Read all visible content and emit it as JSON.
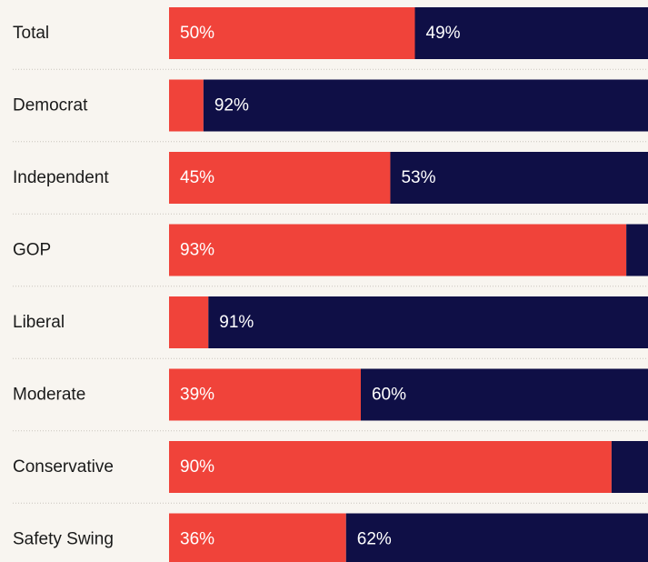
{
  "chart_data": {
    "type": "bar",
    "orientation": "horizontal",
    "stacked": true,
    "categories": [
      "Total",
      "Democrat",
      "Independent",
      "GOP",
      "Liberal",
      "Moderate",
      "Conservative",
      "Safety Swing"
    ],
    "series": [
      {
        "color": "#f0433a",
        "values": [
          50,
          7,
          45,
          93,
          8,
          39,
          90,
          36
        ],
        "labels": [
          "50%",
          "",
          "45%",
          "93%",
          "",
          "39%",
          "90%",
          "36%"
        ]
      },
      {
        "color": "#0f0f46",
        "values": [
          49,
          92,
          53,
          7,
          91,
          60,
          10,
          62
        ],
        "labels": [
          "49%",
          "92%",
          "53%",
          "",
          "91%",
          "60%",
          "",
          "62%"
        ]
      }
    ],
    "xlim": [
      0,
      100
    ],
    "grid": false,
    "legend": "none",
    "title": "",
    "xlabel": "",
    "ylabel": ""
  }
}
